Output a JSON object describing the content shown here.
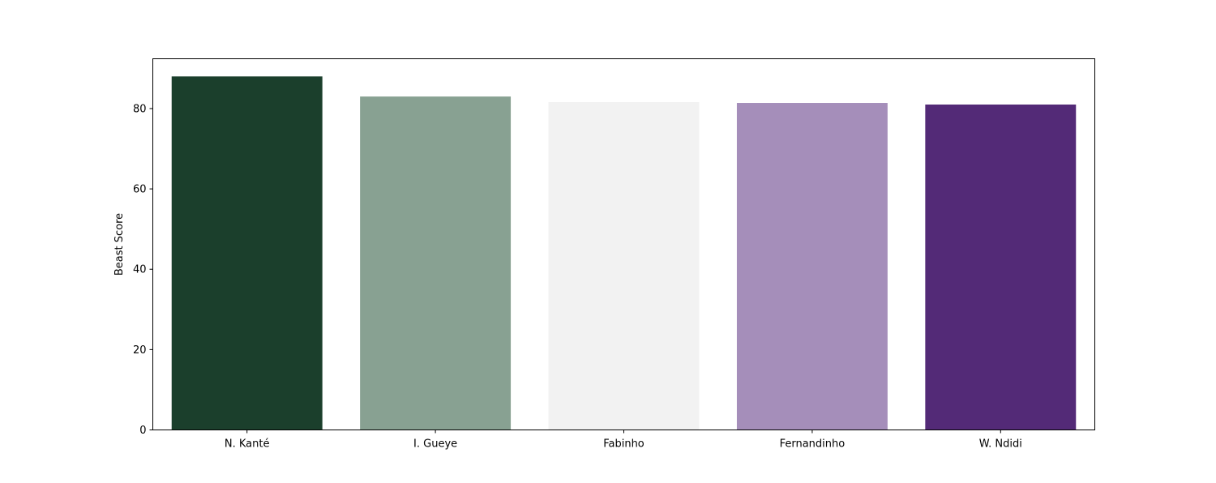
{
  "chart_data": {
    "type": "bar",
    "title": "",
    "xlabel": "",
    "ylabel": "Beast Score",
    "categories": [
      "N. Kanté",
      "I. Gueye",
      "Fabinho",
      "Fernandinho",
      "W. Ndidi"
    ],
    "values": [
      88.0,
      83.0,
      81.6,
      81.4,
      81.0
    ],
    "colors": [
      "#1b3f2c",
      "#88a192",
      "#f2f2f2",
      "#a58eba",
      "#532a77"
    ],
    "ylim": [
      0,
      92.4
    ],
    "yticks": [
      0,
      20,
      40,
      60,
      80
    ],
    "grid": false,
    "legend": "none"
  }
}
